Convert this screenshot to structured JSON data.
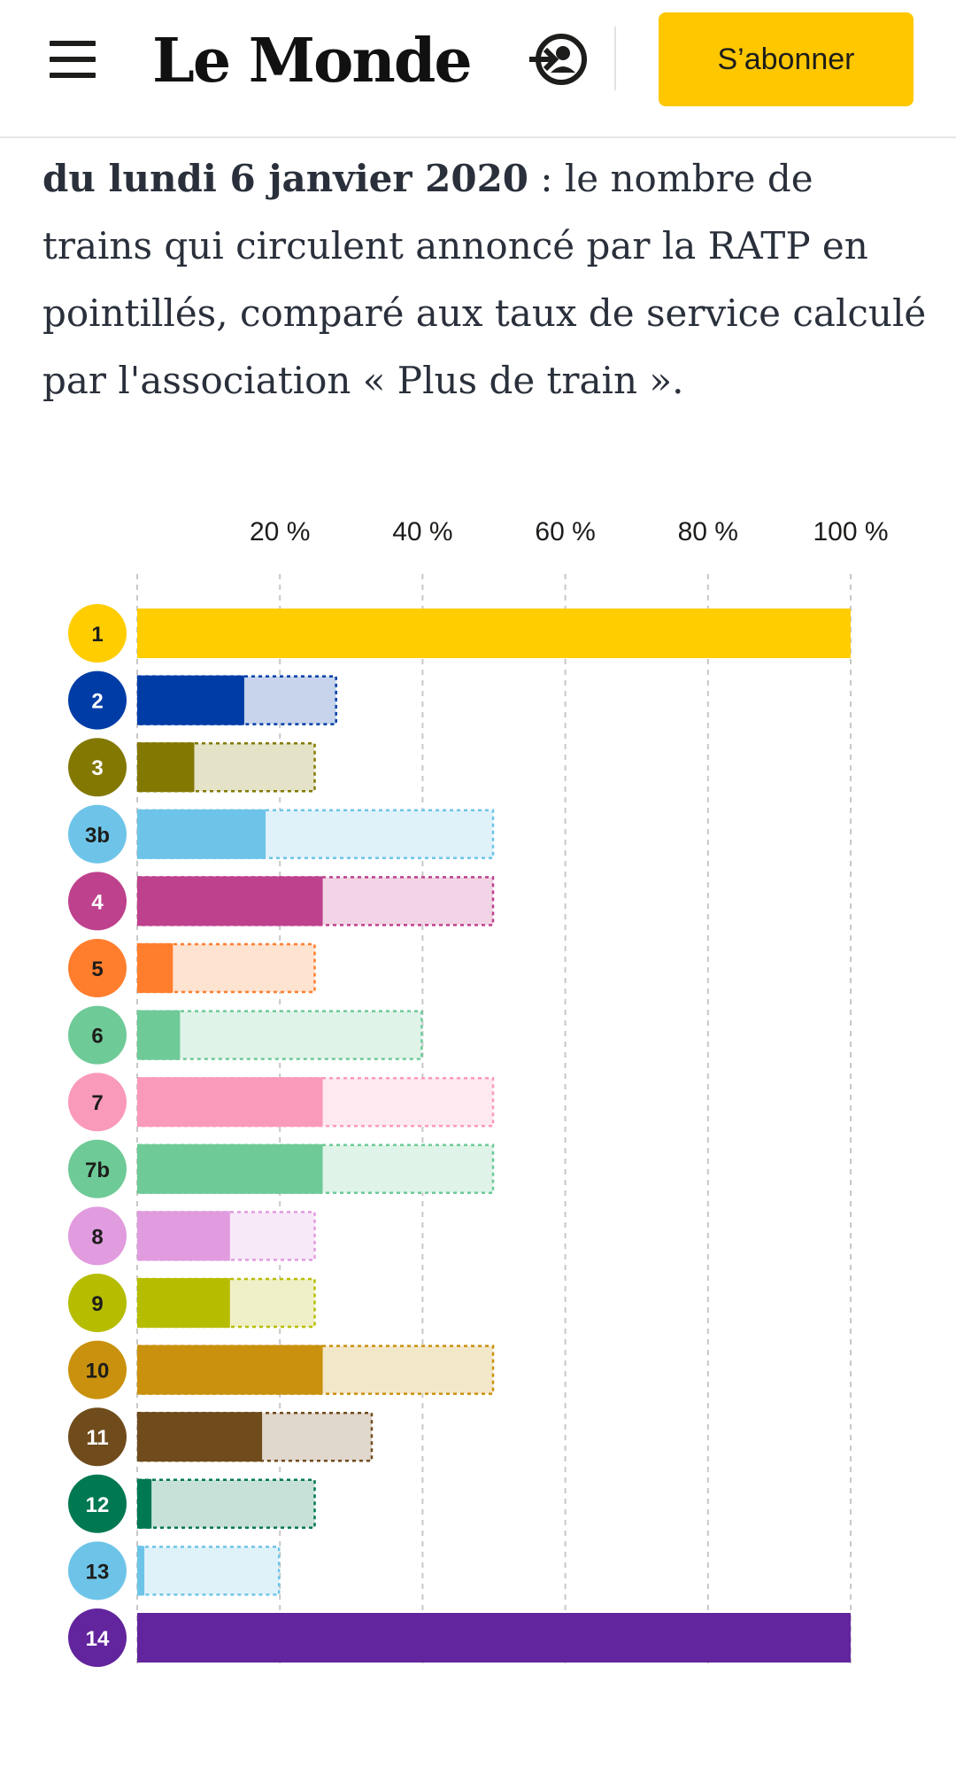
{
  "header": {
    "logo": "Le Monde",
    "subscribe_label": "S’abonner"
  },
  "intro": {
    "bold": "du lundi 6 janvier 2020",
    "rest": " : le nombre de trains qui circulent annoncé par la RATP en pointillés, comparé aux taux de service calculé par l'association « Plus de train »."
  },
  "chart_data": {
    "type": "bar",
    "orientation": "horizontal",
    "title": "",
    "xlabel": "",
    "ylabel": "",
    "xlim": [
      0,
      100
    ],
    "ticks": [
      20,
      40,
      60,
      80,
      100
    ],
    "tick_labels": [
      "20 %",
      "40 %",
      "60 %",
      "80 %",
      "100 %"
    ],
    "grid": true,
    "categories": [
      "1",
      "2",
      "3",
      "3b",
      "4",
      "5",
      "6",
      "7",
      "7b",
      "8",
      "9",
      "10",
      "11",
      "12",
      "13",
      "14"
    ],
    "series": [
      {
        "values": [
          100,
          15,
          8,
          18,
          26,
          5,
          6,
          26,
          26,
          13,
          13,
          26,
          17.5,
          2,
          1,
          100
        ]
      },
      {
        "values": [
          100,
          28,
          25,
          50,
          50,
          25,
          40,
          50,
          50,
          25,
          25,
          50,
          33,
          25,
          20,
          100
        ]
      }
    ],
    "colors": [
      "#ffcd00",
      "#003ca6",
      "#837902",
      "#6ec4e8",
      "#be418d",
      "#ff7e2e",
      "#6eca97",
      "#fa9aba",
      "#6eca97",
      "#e19bdf",
      "#b6bd00",
      "#c9910d",
      "#704b1c",
      "#007852",
      "#6ec4e8",
      "#62259d"
    ],
    "label_colors": [
      "#1d1d1b",
      "#ffffff",
      "#ffffff",
      "#1d1d1b",
      "#ffffff",
      "#1d1d1b",
      "#1d1d1b",
      "#1d1d1b",
      "#1d1d1b",
      "#1d1d1b",
      "#1d1d1b",
      "#1d1d1b",
      "#ffffff",
      "#ffffff",
      "#1d1d1b",
      "#ffffff"
    ]
  }
}
